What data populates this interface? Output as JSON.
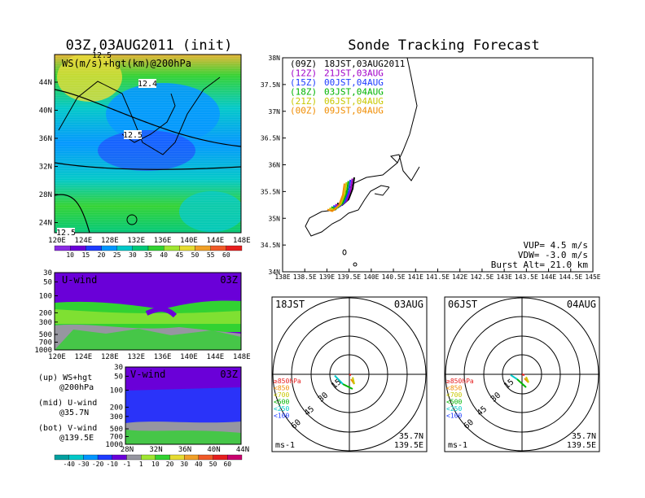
{
  "left_title": "03Z,03AUG2011 (init)",
  "right_title": "Sonde Tracking Forecast",
  "upper_panel": {
    "label": "WS(m/s)+hgt(km)@200hPa",
    "lat_ticks": [
      "44N",
      "40N",
      "36N",
      "32N",
      "28N",
      "24N"
    ],
    "lon_ticks": [
      "120E",
      "124E",
      "128E",
      "132E",
      "136E",
      "140E",
      "144E",
      "148E"
    ],
    "contours": [
      "12.4",
      "12.5",
      "12.5",
      "12.5"
    ],
    "colorbar": {
      "labels": [
        "10",
        "15",
        "20",
        "25",
        "30",
        "35",
        "40",
        "45",
        "50",
        "55",
        "60"
      ],
      "colors": [
        "#8a2be2",
        "#6a00d8",
        "#1e3cff",
        "#0096ff",
        "#00c8c8",
        "#00c878",
        "#32d232",
        "#a0e632",
        "#e6dc32",
        "#f0a028",
        "#f05a28",
        "#e61e1e"
      ]
    }
  },
  "u_panel": {
    "label": "U-wind",
    "time": "03Z",
    "p_ticks": [
      "30",
      "50",
      "100",
      "200",
      "300",
      "500",
      "700",
      "1000"
    ],
    "lon_ticks": [
      "120E",
      "124E",
      "128E",
      "132E",
      "136E",
      "140E",
      "144E",
      "148E"
    ]
  },
  "v_panel": {
    "label": "V-wind",
    "time": "03Z",
    "p_ticks": [
      "30",
      "50",
      "100",
      "200",
      "300",
      "500",
      "700",
      "1000"
    ],
    "lat_ticks": [
      "28N",
      "32N",
      "36N",
      "40N",
      "44N"
    ]
  },
  "legend_notes": [
    {
      "top": "(up) WS+hgt",
      "bottom": "@200hPa"
    },
    {
      "top": "(mid) U-wind",
      "bottom": "@35.7N"
    },
    {
      "top": "(bot) V-wind",
      "bottom": "@139.5E"
    }
  ],
  "bottom_colorbar": {
    "labels": [
      "-40",
      "-30",
      "-20",
      "-10",
      "-1",
      "1",
      "10",
      "20",
      "30",
      "40",
      "50",
      "60"
    ],
    "colors": [
      "#00a0a0",
      "#00c8c8",
      "#0096ff",
      "#1e3cff",
      "#6a00d8",
      "#9696a0",
      "#a0e632",
      "#32d232",
      "#e6dc32",
      "#f0a028",
      "#f05a28",
      "#e61e1e",
      "#c8006e"
    ]
  },
  "track_map": {
    "lat_ticks": [
      "38N",
      "37.5N",
      "37N",
      "36.5N",
      "36N",
      "35.5N",
      "35N",
      "34.5N",
      "34N"
    ],
    "lon_ticks": [
      "138E",
      "138.5E",
      "139E",
      "139.5E",
      "140E",
      "140.5E",
      "141E",
      "141.5E",
      "142E",
      "142.5E",
      "143E",
      "143.5E",
      "144E",
      "144.5E",
      "145E"
    ],
    "launches": [
      {
        "z": "(09Z)",
        "jst": "18JST,03AUG2011",
        "color": "#000000"
      },
      {
        "z": "(12Z)",
        "jst": "21JST,03AUG",
        "color": "#a000c8"
      },
      {
        "z": "(15Z)",
        "jst": "00JST,04AUG",
        "color": "#1e3cff"
      },
      {
        "z": "(18Z)",
        "jst": "03JST,04AUG",
        "color": "#00b400"
      },
      {
        "z": "(21Z)",
        "jst": "06JST,04AUG",
        "color": "#c8c800"
      },
      {
        "z": "(00Z)",
        "jst": "09JST,04AUG",
        "color": "#f08c00"
      }
    ],
    "vup": "VUP= 4.5 m/s",
    "vdw": "VDW= -3.0 m/s",
    "burst": "Burst Alt= 21.0 km"
  },
  "hodographs": [
    {
      "time": "18JST",
      "date": "03AUG",
      "ring_labels": [
        "15",
        "30",
        "45",
        "60"
      ],
      "lat": "35.7N",
      "lon": "139.5E",
      "unit": "ms-1",
      "levels": [
        {
          "text": "≥850hPa",
          "color": "#e61e1e"
        },
        {
          "text": "<850",
          "color": "#f08c00"
        },
        {
          "text": "<700",
          "color": "#c8c800"
        },
        {
          "text": "<500",
          "color": "#00b400"
        },
        {
          "text": "<250",
          "color": "#00c8c8"
        },
        {
          "text": "<100",
          "color": "#1e3cff"
        }
      ]
    },
    {
      "time": "06JST",
      "date": "04AUG",
      "ring_labels": [
        "15",
        "30",
        "45",
        "60"
      ],
      "lat": "35.7N",
      "lon": "139.5E",
      "unit": "ms-1",
      "levels": [
        {
          "text": "≥850hPa",
          "color": "#e61e1e"
        },
        {
          "text": "<850",
          "color": "#f08c00"
        },
        {
          "text": "<700",
          "color": "#c8c800"
        },
        {
          "text": "<500",
          "color": "#00b400"
        },
        {
          "text": "<250",
          "color": "#00c8c8"
        },
        {
          "text": "<100",
          "color": "#1e3cff"
        }
      ]
    }
  ]
}
